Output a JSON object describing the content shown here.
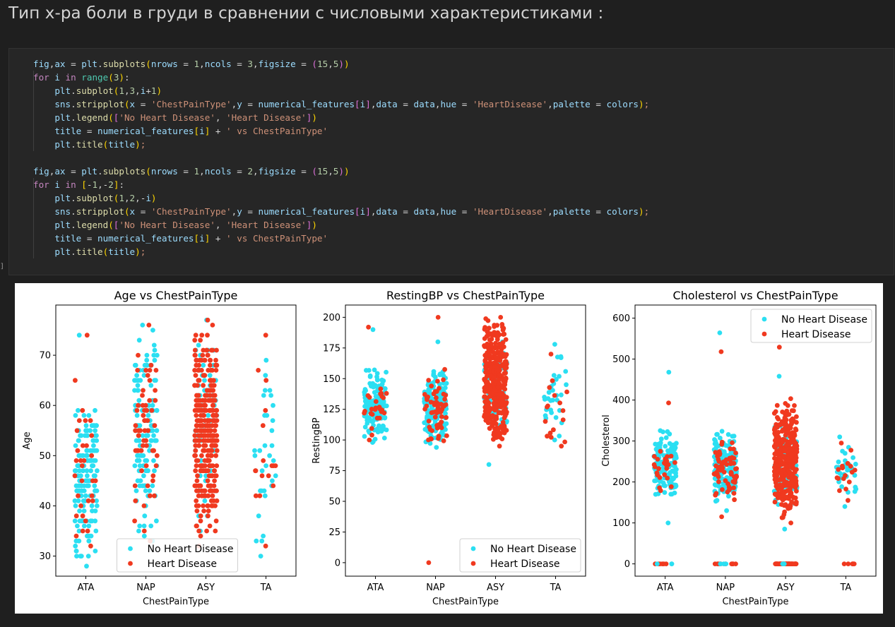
{
  "heading": "Тип х-ра боли в груди в сравнении с числовыми характеристиками :",
  "code_lines": [
    [
      [
        "var",
        "fig"
      ],
      [
        "op",
        ","
      ],
      [
        "var",
        "ax"
      ],
      [
        "op",
        " = "
      ],
      [
        "var",
        "plt"
      ],
      [
        "op",
        "."
      ],
      [
        "fn",
        "subplots"
      ],
      [
        "p1",
        "("
      ],
      [
        "var",
        "nrows"
      ],
      [
        "op",
        " = "
      ],
      [
        "num",
        "1"
      ],
      [
        "op",
        ","
      ],
      [
        "var",
        "ncols"
      ],
      [
        "op",
        " = "
      ],
      [
        "num",
        "3"
      ],
      [
        "op",
        ","
      ],
      [
        "var",
        "figsize"
      ],
      [
        "op",
        " = "
      ],
      [
        "p2",
        "("
      ],
      [
        "num",
        "15"
      ],
      [
        "op",
        ","
      ],
      [
        "num",
        "5"
      ],
      [
        "p2",
        ")"
      ],
      [
        "p1",
        ")"
      ]
    ],
    [
      [
        "kw",
        "for"
      ],
      [
        "op",
        " "
      ],
      [
        "var",
        "i"
      ],
      [
        "op",
        " "
      ],
      [
        "kw",
        "in"
      ],
      [
        "op",
        " "
      ],
      [
        "bi",
        "range"
      ],
      [
        "p1",
        "("
      ],
      [
        "num",
        "3"
      ],
      [
        "p1",
        ")"
      ],
      [
        "op",
        ":"
      ]
    ],
    [
      [
        "op",
        "    "
      ],
      [
        "var",
        "plt"
      ],
      [
        "op",
        "."
      ],
      [
        "fn",
        "subplot"
      ],
      [
        "p1",
        "("
      ],
      [
        "num",
        "1"
      ],
      [
        "op",
        ","
      ],
      [
        "num",
        "3"
      ],
      [
        "op",
        ","
      ],
      [
        "var",
        "i"
      ],
      [
        "op",
        "+"
      ],
      [
        "num",
        "1"
      ],
      [
        "p1",
        ")"
      ]
    ],
    [
      [
        "op",
        "    "
      ],
      [
        "var",
        "sns"
      ],
      [
        "op",
        "."
      ],
      [
        "fn",
        "stripplot"
      ],
      [
        "p1",
        "("
      ],
      [
        "var",
        "x"
      ],
      [
        "op",
        " = "
      ],
      [
        "str",
        "'ChestPainType'"
      ],
      [
        "op",
        ","
      ],
      [
        "var",
        "y"
      ],
      [
        "op",
        " = "
      ],
      [
        "var",
        "numerical_features"
      ],
      [
        "p2",
        "["
      ],
      [
        "var",
        "i"
      ],
      [
        "p2",
        "]"
      ],
      [
        "op",
        ","
      ],
      [
        "var",
        "data"
      ],
      [
        "op",
        " = "
      ],
      [
        "var",
        "data"
      ],
      [
        "op",
        ","
      ],
      [
        "var",
        "hue"
      ],
      [
        "op",
        " = "
      ],
      [
        "str",
        "'HeartDisease'"
      ],
      [
        "op",
        ","
      ],
      [
        "var",
        "palette"
      ],
      [
        "op",
        " = "
      ],
      [
        "var",
        "colors"
      ],
      [
        "p1",
        ")"
      ],
      [
        "str",
        ";"
      ]
    ],
    [
      [
        "op",
        "    "
      ],
      [
        "var",
        "plt"
      ],
      [
        "op",
        "."
      ],
      [
        "fn",
        "legend"
      ],
      [
        "p1",
        "("
      ],
      [
        "p2",
        "["
      ],
      [
        "str",
        "'No Heart Disease'"
      ],
      [
        "op",
        ", "
      ],
      [
        "str",
        "'Heart Disease'"
      ],
      [
        "p2",
        "]"
      ],
      [
        "p1",
        ")"
      ]
    ],
    [
      [
        "op",
        "    "
      ],
      [
        "var",
        "title"
      ],
      [
        "op",
        " = "
      ],
      [
        "var",
        "numerical_features"
      ],
      [
        "p1",
        "["
      ],
      [
        "var",
        "i"
      ],
      [
        "p1",
        "]"
      ],
      [
        "op",
        " + "
      ],
      [
        "str",
        "' vs ChestPainType'"
      ]
    ],
    [
      [
        "op",
        "    "
      ],
      [
        "var",
        "plt"
      ],
      [
        "op",
        "."
      ],
      [
        "fn",
        "title"
      ],
      [
        "p1",
        "("
      ],
      [
        "var",
        "title"
      ],
      [
        "p1",
        ")"
      ],
      [
        "str",
        ";"
      ]
    ],
    [],
    [
      [
        "var",
        "fig"
      ],
      [
        "op",
        ","
      ],
      [
        "var",
        "ax"
      ],
      [
        "op",
        " = "
      ],
      [
        "var",
        "plt"
      ],
      [
        "op",
        "."
      ],
      [
        "fn",
        "subplots"
      ],
      [
        "p1",
        "("
      ],
      [
        "var",
        "nrows"
      ],
      [
        "op",
        " = "
      ],
      [
        "num",
        "1"
      ],
      [
        "op",
        ","
      ],
      [
        "var",
        "ncols"
      ],
      [
        "op",
        " = "
      ],
      [
        "num",
        "2"
      ],
      [
        "op",
        ","
      ],
      [
        "var",
        "figsize"
      ],
      [
        "op",
        " = "
      ],
      [
        "p2",
        "("
      ],
      [
        "num",
        "15"
      ],
      [
        "op",
        ","
      ],
      [
        "num",
        "5"
      ],
      [
        "p2",
        ")"
      ],
      [
        "p1",
        ")"
      ]
    ],
    [
      [
        "kw",
        "for"
      ],
      [
        "op",
        " "
      ],
      [
        "var",
        "i"
      ],
      [
        "op",
        " "
      ],
      [
        "kw",
        "in"
      ],
      [
        "op",
        " "
      ],
      [
        "p1",
        "["
      ],
      [
        "op",
        "-"
      ],
      [
        "num",
        "1"
      ],
      [
        "op",
        ",-"
      ],
      [
        "num",
        "2"
      ],
      [
        "p1",
        "]"
      ],
      [
        "op",
        ":"
      ]
    ],
    [
      [
        "op",
        "    "
      ],
      [
        "var",
        "plt"
      ],
      [
        "op",
        "."
      ],
      [
        "fn",
        "subplot"
      ],
      [
        "p1",
        "("
      ],
      [
        "num",
        "1"
      ],
      [
        "op",
        ","
      ],
      [
        "num",
        "2"
      ],
      [
        "op",
        ",-"
      ],
      [
        "var",
        "i"
      ],
      [
        "p1",
        ")"
      ]
    ],
    [
      [
        "op",
        "    "
      ],
      [
        "var",
        "sns"
      ],
      [
        "op",
        "."
      ],
      [
        "fn",
        "stripplot"
      ],
      [
        "p1",
        "("
      ],
      [
        "var",
        "x"
      ],
      [
        "op",
        " = "
      ],
      [
        "str",
        "'ChestPainType'"
      ],
      [
        "op",
        ","
      ],
      [
        "var",
        "y"
      ],
      [
        "op",
        " = "
      ],
      [
        "var",
        "numerical_features"
      ],
      [
        "p2",
        "["
      ],
      [
        "var",
        "i"
      ],
      [
        "p2",
        "]"
      ],
      [
        "op",
        ","
      ],
      [
        "var",
        "data"
      ],
      [
        "op",
        " = "
      ],
      [
        "var",
        "data"
      ],
      [
        "op",
        ","
      ],
      [
        "var",
        "hue"
      ],
      [
        "op",
        " = "
      ],
      [
        "str",
        "'HeartDisease'"
      ],
      [
        "op",
        ","
      ],
      [
        "var",
        "palette"
      ],
      [
        "op",
        " = "
      ],
      [
        "var",
        "colors"
      ],
      [
        "p1",
        ")"
      ],
      [
        "str",
        ";"
      ]
    ],
    [
      [
        "op",
        "    "
      ],
      [
        "var",
        "plt"
      ],
      [
        "op",
        "."
      ],
      [
        "fn",
        "legend"
      ],
      [
        "p1",
        "("
      ],
      [
        "p2",
        "["
      ],
      [
        "str",
        "'No Heart Disease'"
      ],
      [
        "op",
        ", "
      ],
      [
        "str",
        "'Heart Disease'"
      ],
      [
        "p2",
        "]"
      ],
      [
        "p1",
        ")"
      ]
    ],
    [
      [
        "op",
        "    "
      ],
      [
        "var",
        "title"
      ],
      [
        "op",
        " = "
      ],
      [
        "var",
        "numerical_features"
      ],
      [
        "p1",
        "["
      ],
      [
        "var",
        "i"
      ],
      [
        "p1",
        "]"
      ],
      [
        "op",
        " + "
      ],
      [
        "str",
        "' vs ChestPainType'"
      ]
    ],
    [
      [
        "op",
        "    "
      ],
      [
        "var",
        "plt"
      ],
      [
        "op",
        "."
      ],
      [
        "fn",
        "title"
      ],
      [
        "p1",
        "("
      ],
      [
        "var",
        "title"
      ],
      [
        "p1",
        ")"
      ],
      [
        "str",
        ";"
      ]
    ]
  ],
  "cell_bracket": "]",
  "colors": {
    "no_disease": "#2bdff2",
    "disease": "#f0391f"
  },
  "chart_data": [
    {
      "type": "scatter",
      "title": "Age vs ChestPainType",
      "xlabel": "ChestPainType",
      "ylabel": "Age",
      "categories": [
        "ATA",
        "NAP",
        "ASY",
        "TA"
      ],
      "ylim": [
        26,
        80
      ],
      "yticks": [
        30,
        40,
        50,
        60,
        70
      ],
      "legend": {
        "labels": [
          "No Heart Disease",
          "Heart Disease"
        ],
        "loc": "lower center"
      },
      "series": [
        {
          "name": "No Heart Disease",
          "bands": [
            [
              28,
              63,
              150
            ],
            [
              32,
              76,
              130
            ],
            [
              35,
              76,
              70
            ],
            [
              30,
              69,
              30
            ]
          ],
          "extremes": [
            [
              74,
              28
            ],
            [
              76,
              33
            ],
            [
              77,
              35
            ],
            [
              69,
              30
            ]
          ]
        },
        {
          "name": "Heart Disease",
          "bands": [
            [
              32,
              66,
              30
            ],
            [
              33,
              76,
              60
            ],
            [
              32,
              77,
              330
            ],
            [
              32,
              74,
              15
            ]
          ],
          "extremes": [
            [
              74,
              32
            ],
            [
              76,
              33
            ],
            [
              77,
              32
            ],
            [
              74,
              32
            ]
          ]
        }
      ]
    },
    {
      "type": "scatter",
      "title": "RestingBP vs ChestPainType",
      "xlabel": "ChestPainType",
      "ylabel": "RestingBP",
      "categories": [
        "ATA",
        "NAP",
        "ASY",
        "TA"
      ],
      "ylim": [
        -11,
        210
      ],
      "yticks": [
        0,
        25,
        50,
        75,
        100,
        125,
        150,
        175,
        200
      ],
      "legend": {
        "labels": [
          "No Heart Disease",
          "Heart Disease"
        ],
        "loc": "lower right"
      },
      "series": [
        {
          "name": "No Heart Disease",
          "bands": [
            [
              98,
              160,
              150
            ],
            [
              94,
              160,
              160
            ],
            [
              100,
              180,
              100
            ],
            [
              100,
              178,
              30
            ]
          ],
          "extremes": [
            [
              190,
              98
            ],
            [
              180,
              94
            ],
            [
              80,
              180
            ],
            [
              178,
              100
            ]
          ]
        },
        {
          "name": "Heart Disease",
          "bands": [
            [
              100,
              160,
              25
            ],
            [
              95,
              160,
              60
            ],
            [
              95,
              200,
              360
            ],
            [
              95,
              160,
              15
            ]
          ],
          "extremes": [
            [
              192,
              100
            ],
            [
              200,
              0
            ],
            [
              200,
              95
            ],
            [
              95,
              170
            ]
          ]
        }
      ]
    },
    {
      "type": "scatter",
      "title": "Cholesterol vs ChestPainType",
      "xlabel": "ChestPainType",
      "ylabel": "Cholesterol",
      "categories": [
        "ATA",
        "NAP",
        "ASY",
        "TA"
      ],
      "ylim": [
        -30,
        632
      ],
      "yticks": [
        0,
        100,
        200,
        300,
        400,
        500,
        600
      ],
      "legend": {
        "labels": [
          "No Heart Disease",
          "Heart Disease"
        ],
        "loc": "upper right"
      },
      "series": [
        {
          "name": "No Heart Disease",
          "bands": [
            [
              150,
              330,
              150
            ],
            [
              150,
              330,
              160
            ],
            [
              120,
              350,
              100
            ],
            [
              160,
              300,
              30
            ]
          ],
          "extremes": [
            [
              468,
              100
            ],
            [
              564,
              130
            ],
            [
              458,
              85
            ],
            [
              140,
              310
            ]
          ]
        },
        {
          "name": "Heart Disease",
          "bands": [
            [
              170,
              300,
              25
            ],
            [
              150,
              330,
              60
            ],
            [
              100,
              410,
              360
            ],
            [
              160,
              290,
              15
            ]
          ],
          "extremes": [
            [
              393,
              0
            ],
            [
              518,
              115
            ],
            [
              529,
              100
            ],
            [
              155,
              295
            ]
          ],
          "zeros": [
            5,
            10,
            60,
            6
          ]
        }
      ]
    }
  ]
}
